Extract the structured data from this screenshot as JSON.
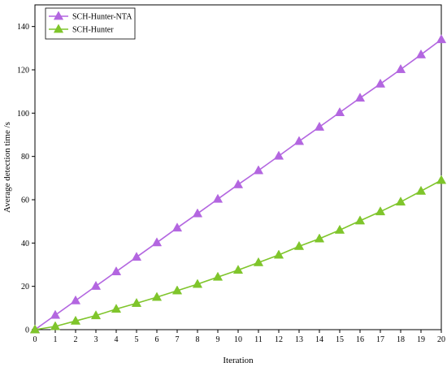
{
  "chart_data": {
    "type": "line",
    "title": "",
    "xlabel": "Iteration",
    "ylabel": "Average detection time /s",
    "xlim": [
      0,
      20
    ],
    "ylim": [
      0,
      150
    ],
    "xticks": [
      0,
      1,
      2,
      3,
      4,
      5,
      6,
      7,
      8,
      9,
      10,
      11,
      12,
      13,
      14,
      15,
      16,
      17,
      18,
      19,
      20
    ],
    "yticks": [
      0,
      20,
      40,
      60,
      80,
      100,
      120,
      140
    ],
    "grid": false,
    "legend_position": "top-left",
    "x": [
      0,
      1,
      2,
      3,
      4,
      5,
      6,
      7,
      8,
      9,
      10,
      11,
      12,
      13,
      14,
      15,
      16,
      17,
      18,
      19,
      20
    ],
    "series": [
      {
        "name": "SCH-Hunter-NTA",
        "color": "#b366e0",
        "marker": "triangle",
        "values": [
          0,
          6.7,
          13.4,
          20.1,
          26.8,
          33.5,
          40.2,
          47,
          53.6,
          60.3,
          67,
          73.5,
          80.2,
          87,
          93.6,
          100.3,
          107,
          113.5,
          120.2,
          127,
          134
        ]
      },
      {
        "name": "SCH-Hunter",
        "color": "#7fc52b",
        "marker": "triangle",
        "values": [
          0,
          1.5,
          4,
          6.5,
          9.5,
          12.2,
          15,
          18,
          21,
          24.3,
          27.5,
          31,
          34.5,
          38.5,
          42,
          46,
          50.3,
          54.5,
          59,
          64,
          69
        ]
      }
    ]
  }
}
